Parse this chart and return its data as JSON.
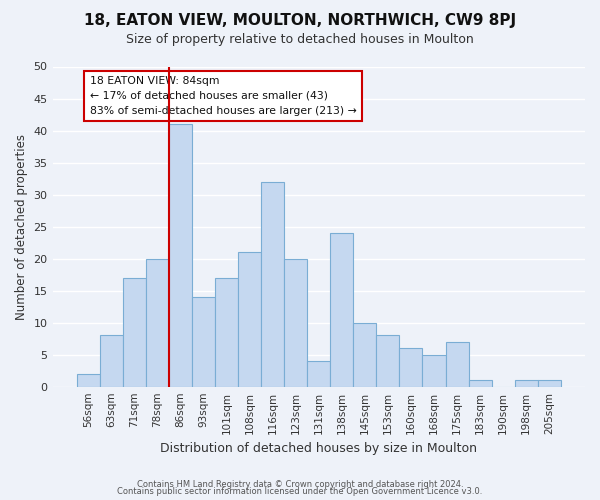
{
  "title": "18, EATON VIEW, MOULTON, NORTHWICH, CW9 8PJ",
  "subtitle": "Size of property relative to detached houses in Moulton",
  "xlabel": "Distribution of detached houses by size in Moulton",
  "ylabel": "Number of detached properties",
  "footer1": "Contains HM Land Registry data © Crown copyright and database right 2024.",
  "footer2": "Contains public sector information licensed under the Open Government Licence v3.0.",
  "bin_labels": [
    "56sqm",
    "63sqm",
    "71sqm",
    "78sqm",
    "86sqm",
    "93sqm",
    "101sqm",
    "108sqm",
    "116sqm",
    "123sqm",
    "131sqm",
    "138sqm",
    "145sqm",
    "153sqm",
    "160sqm",
    "168sqm",
    "175sqm",
    "183sqm",
    "190sqm",
    "198sqm",
    "205sqm"
  ],
  "bar_values": [
    2,
    8,
    17,
    20,
    41,
    14,
    17,
    21,
    32,
    20,
    4,
    24,
    10,
    8,
    6,
    5,
    7,
    1,
    0,
    1,
    1
  ],
  "bar_color": "#c5d8f0",
  "bar_edge_color": "#7aadd4",
  "marker_line_x_label": "86sqm",
  "marker_line_color": "#cc0000",
  "ylim": [
    0,
    50
  ],
  "yticks": [
    0,
    5,
    10,
    15,
    20,
    25,
    30,
    35,
    40,
    45,
    50
  ],
  "annotation_title": "18 EATON VIEW: 84sqm",
  "annotation_line1": "← 17% of detached houses are smaller (43)",
  "annotation_line2": "83% of semi-detached houses are larger (213) →",
  "annotation_box_color": "#ffffff",
  "annotation_box_edge": "#cc0000",
  "bg_color": "#eef2f9",
  "grid_color": "#ffffff"
}
